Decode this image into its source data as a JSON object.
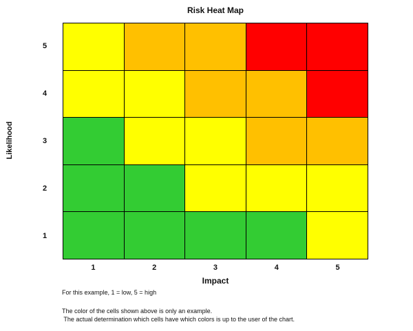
{
  "chart_data": {
    "type": "heatmap",
    "title": "Risk Heat Map",
    "xlabel": "Impact",
    "ylabel": "Likelihood",
    "x_categories": [
      "1",
      "2",
      "3",
      "4",
      "5"
    ],
    "y_categories": [
      "5",
      "4",
      "3",
      "2",
      "1"
    ],
    "grid_lines": "on",
    "legend_position": "none",
    "cells_by_row_top_to_bottom": [
      [
        "yellow",
        "orange",
        "orange",
        "red",
        "red"
      ],
      [
        "yellow",
        "yellow",
        "orange",
        "orange",
        "red"
      ],
      [
        "green",
        "yellow",
        "yellow",
        "orange",
        "orange"
      ],
      [
        "green",
        "green",
        "yellow",
        "yellow",
        "yellow"
      ],
      [
        "green",
        "green",
        "green",
        "green",
        "yellow"
      ]
    ],
    "color_map": {
      "green": "#33cc33",
      "yellow": "#ffff00",
      "orange": "#ffc000",
      "red": "#ff0000"
    },
    "border_color": "#000000",
    "background_color": "#ffffff"
  },
  "notes": {
    "line1": "For this example, 1 = low, 5 = high",
    "line2": "The color of the cells shown above is only an example.",
    "line3": " The actual determination which cells have which colors is up to the user of the chart."
  }
}
